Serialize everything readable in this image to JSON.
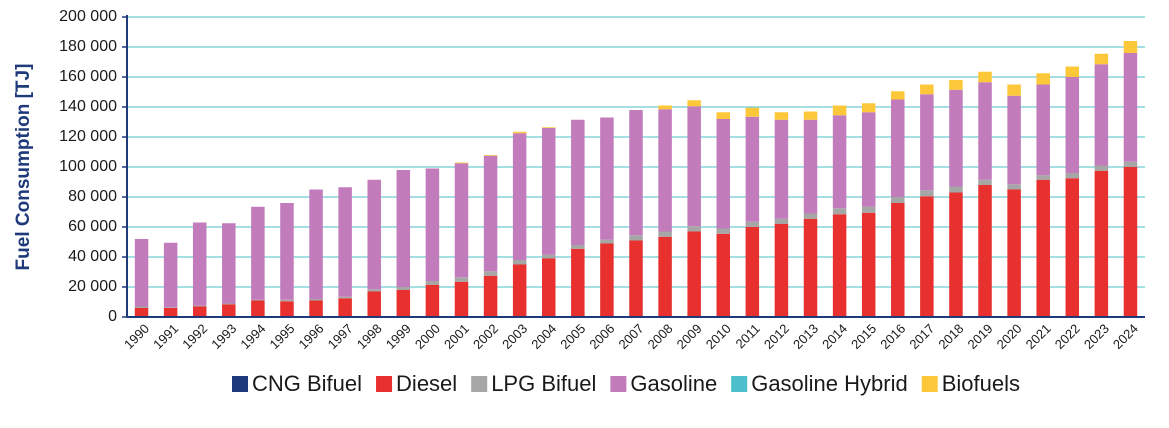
{
  "chart_data": {
    "type": "stacked_bar",
    "y_label": "Fuel Consumption [TJ]",
    "categories": [
      "1990",
      "1991",
      "1992",
      "1993",
      "1994",
      "1995",
      "1996",
      "1997",
      "1998",
      "1999",
      "2000",
      "2001",
      "2002",
      "2003",
      "2004",
      "2005",
      "2006",
      "2007",
      "2008",
      "2009",
      "2010",
      "2011",
      "2012",
      "2013",
      "2014",
      "2015",
      "2016",
      "2017",
      "2018",
      "2019",
      "2020",
      "2021",
      "2022",
      "2023",
      "2024"
    ],
    "series": [
      {
        "name": "CNG Bifuel",
        "color": "#1f3a7a",
        "values": [
          0,
          0,
          0,
          0,
          0,
          0,
          0,
          0,
          0,
          0,
          0,
          0,
          0,
          0,
          0,
          0,
          0,
          0,
          0,
          0,
          0,
          0,
          0,
          0,
          0,
          0,
          0,
          0,
          0,
          0,
          0,
          0,
          0,
          0,
          0
        ]
      },
      {
        "name": "Diesel",
        "color": "#e8312f",
        "values": [
          6000,
          6000,
          7000,
          8500,
          11000,
          10500,
          11000,
          12500,
          17000,
          18000,
          21500,
          23500,
          27500,
          35000,
          39000,
          45500,
          49000,
          51000,
          53500,
          57000,
          55500,
          60000,
          62000,
          65500,
          68500,
          69500,
          76000,
          80500,
          83000,
          88000,
          85000,
          91500,
          92500,
          97500,
          100000
        ]
      },
      {
        "name": "LPG Bifuel",
        "color": "#a6a6a6",
        "values": [
          1000,
          500,
          500,
          500,
          500,
          1000,
          1000,
          1000,
          1500,
          2000,
          2500,
          3000,
          3000,
          3000,
          2500,
          2500,
          2500,
          3500,
          3500,
          3500,
          3500,
          3500,
          3500,
          3500,
          4000,
          4000,
          4000,
          4000,
          4000,
          3500,
          3500,
          3000,
          3500,
          3500,
          3500
        ]
      },
      {
        "name": "Gasoline",
        "color": "#c27bbb",
        "values": [
          45000,
          43000,
          55500,
          53500,
          62000,
          64500,
          73000,
          73000,
          73000,
          78000,
          75000,
          76000,
          77000,
          84500,
          84500,
          83500,
          81500,
          83500,
          81500,
          80000,
          73000,
          70000,
          66000,
          62500,
          62000,
          63000,
          65000,
          64000,
          64500,
          65000,
          59000,
          60500,
          64000,
          67500,
          72500
        ]
      },
      {
        "name": "Gasoline Hybrid",
        "color": "#4bbfca",
        "values": [
          0,
          0,
          0,
          0,
          0,
          0,
          0,
          0,
          0,
          0,
          0,
          0,
          0,
          0,
          0,
          0,
          0,
          0,
          0,
          0,
          0,
          0,
          0,
          0,
          0,
          0,
          0,
          0,
          0,
          0,
          0,
          0,
          0,
          0,
          0
        ]
      },
      {
        "name": "Biofuels",
        "color": "#fcc83a",
        "values": [
          0,
          0,
          0,
          0,
          0,
          0,
          0,
          0,
          0,
          0,
          0,
          500,
          500,
          1000,
          500,
          0,
          0,
          0,
          2500,
          4000,
          4500,
          6000,
          5000,
          5500,
          6500,
          6000,
          5500,
          6500,
          6500,
          7000,
          7500,
          7500,
          7000,
          7000,
          8000
        ]
      }
    ],
    "ylim": [
      0,
      200000
    ],
    "yticks": [
      0,
      {
        "value": 20000,
        "label": "20 000"
      },
      {
        "value": 40000,
        "label": "40 000"
      },
      {
        "value": 60000,
        "label": "60 000"
      },
      {
        "value": 80000,
        "label": "80 000"
      },
      {
        "value": 100000,
        "label": "100 000"
      },
      {
        "value": 120000,
        "label": "120 000"
      },
      {
        "value": 140000,
        "label": "140 000"
      },
      {
        "value": 160000,
        "label": "160 000"
      },
      {
        "value": 180000,
        "label": "180 000"
      },
      {
        "value": 200000,
        "label": "200 000"
      }
    ],
    "grid": true,
    "grid_color": "#4bbfca",
    "axis_color": "#1f3a7a",
    "legend": "bottom"
  }
}
